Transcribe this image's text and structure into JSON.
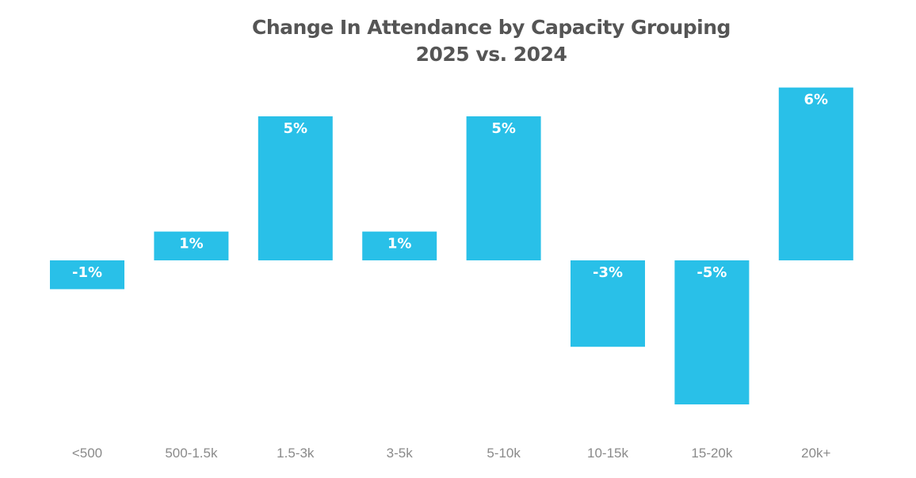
{
  "chart_data": {
    "type": "bar",
    "title": "Change In Attendance by Capacity Grouping",
    "subtitle": "2025 vs. 2024",
    "xlabel": "",
    "ylabel": "",
    "categories": [
      "<500",
      "500-1.5k",
      "1.5-3k",
      "3-5k",
      "5-10k",
      "10-15k",
      "15-20k",
      "20k+"
    ],
    "values": [
      -1,
      1,
      5,
      1,
      5,
      -3,
      -5,
      6
    ],
    "data_labels": [
      "-1%",
      "1%",
      "5%",
      "1%",
      "5%",
      "-3%",
      "-5%",
      "6%"
    ],
    "unit": "%",
    "ylim": [
      -6,
      7
    ],
    "grid": false,
    "legend": "none",
    "colors": {
      "bar": "#29C0E8",
      "title": "#555555",
      "tick": "#8A8A8A",
      "label": "#FFFFFF"
    }
  }
}
